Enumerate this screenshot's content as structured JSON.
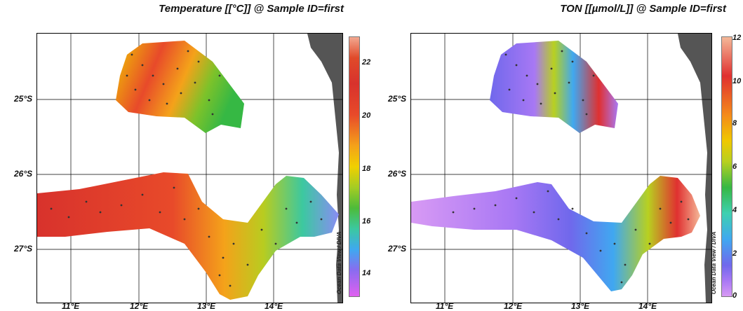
{
  "chart_data": [
    {
      "type": "heatmap",
      "title": "Temperature [[°C]] @ Sample ID=first",
      "x_ticks": [
        "11°E",
        "12°E",
        "13°E",
        "14°E"
      ],
      "y_ticks": [
        "25°S",
        "26°S",
        "27°S"
      ],
      "colorbar": {
        "ticks": [
          "22",
          "20",
          "18",
          "16",
          "14"
        ],
        "range": [
          13,
          23
        ]
      },
      "value_ranges": [
        {
          "region": "northern patch",
          "min": 17,
          "max": 23
        },
        {
          "region": "southern band west",
          "min": 21,
          "max": 23
        },
        {
          "region": "southern band east",
          "min": 15,
          "max": 20
        }
      ],
      "watermark": "Ocean Data View / DIVA"
    },
    {
      "type": "heatmap",
      "title": "TON [[µmol/L]] @ Sample ID=first",
      "x_ticks": [
        "11°E",
        "12°E",
        "13°E",
        "14°E"
      ],
      "y_ticks": [
        "25°S",
        "26°S",
        "27°S"
      ],
      "colorbar": {
        "ticks": [
          "12",
          "10",
          "8",
          "6",
          "4",
          "2",
          "0"
        ],
        "range": [
          0,
          12
        ]
      },
      "value_ranges": [
        {
          "region": "northern patch",
          "min": 1,
          "max": 10
        },
        {
          "region": "southern band west",
          "min": 0,
          "max": 3
        },
        {
          "region": "southern band east",
          "min": 2,
          "max": 12
        }
      ],
      "watermark": "Ocean Data View / DIVA"
    }
  ],
  "colors": {
    "temperature_scale": [
      "#e060f0",
      "#8a6cf0",
      "#3fa8f0",
      "#3cc8a0",
      "#4dbb3a",
      "#a4cc24",
      "#f0d000",
      "#f4a21a",
      "#e84a2a",
      "#d8322c",
      "#f2a890"
    ],
    "ton_scale": [
      "#d89af4",
      "#a878f4",
      "#7068ec",
      "#40a8f0",
      "#3ed0b0",
      "#36b844",
      "#b8d020",
      "#f0c800",
      "#f48a1a",
      "#e03030",
      "#f4b898"
    ],
    "land": "#555555"
  }
}
